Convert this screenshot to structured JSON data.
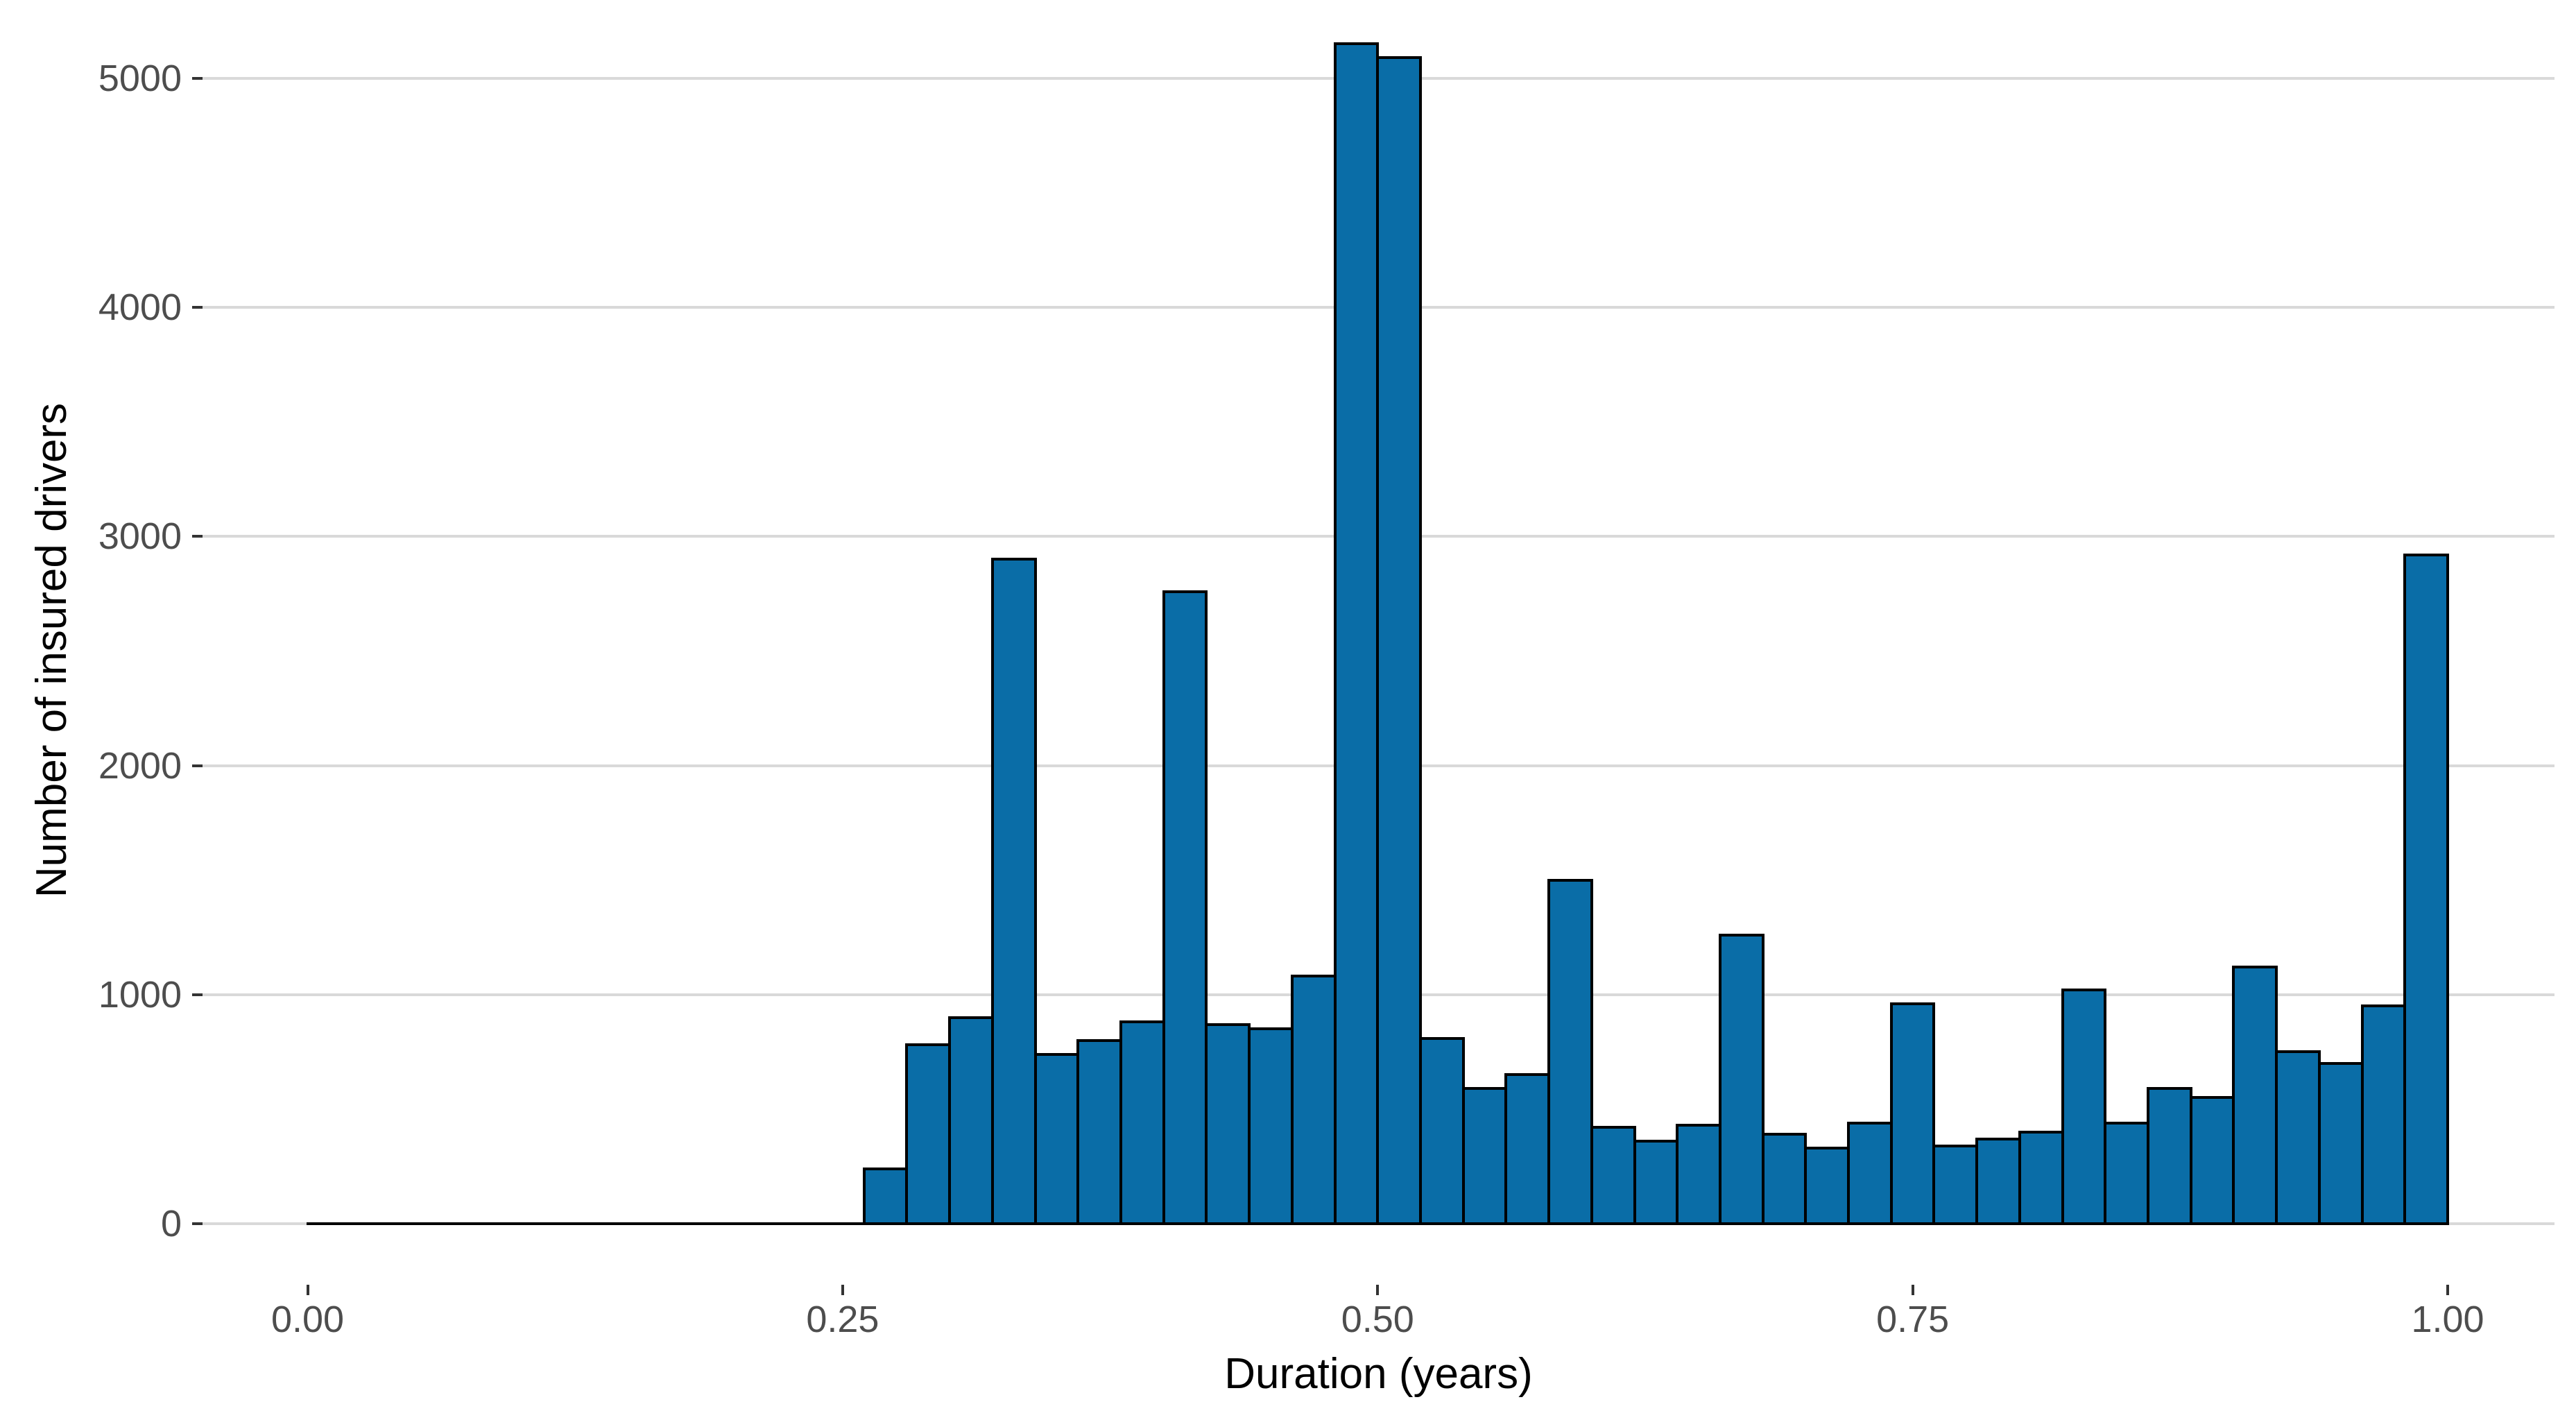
{
  "chart_data": {
    "type": "bar",
    "subtype": "histogram",
    "title": "",
    "xlabel": "Duration (years)",
    "ylabel": "Number of insured drivers",
    "legend": "none",
    "grid": "horizontal-major-only",
    "xlim": [
      -0.05,
      1.05
    ],
    "ylim": [
      0,
      5400
    ],
    "bin_start": 0.0,
    "bin_width": 0.02,
    "counts": [
      0,
      0,
      0,
      0,
      0,
      0,
      0,
      0,
      0,
      0,
      0,
      0,
      0,
      240,
      780,
      900,
      2900,
      740,
      800,
      880,
      2760,
      870,
      850,
      1080,
      5150,
      5090,
      810,
      590,
      650,
      1500,
      420,
      360,
      430,
      1260,
      390,
      330,
      440,
      960,
      340,
      370,
      400,
      1020,
      440,
      590,
      550,
      1120,
      750,
      700,
      950,
      2920
    ],
    "x_ticks": [
      {
        "value": 0.0,
        "label": "0.00"
      },
      {
        "value": 0.25,
        "label": "0.25"
      },
      {
        "value": 0.5,
        "label": "0.50"
      },
      {
        "value": 0.75,
        "label": "0.75"
      },
      {
        "value": 1.0,
        "label": "1.00"
      }
    ],
    "y_ticks": [
      {
        "value": 0,
        "label": "0"
      },
      {
        "value": 1000,
        "label": "1000"
      },
      {
        "value": 2000,
        "label": "2000"
      },
      {
        "value": 3000,
        "label": "3000"
      },
      {
        "value": 4000,
        "label": "4000"
      },
      {
        "value": 5000,
        "label": "5000"
      }
    ],
    "colors": {
      "bar_fill": "#0a6da7",
      "bar_stroke": "#000000",
      "gridline": "#d9d9d9",
      "tick_mark": "#333333",
      "tick_label": "#4d4d4d",
      "axis_title": "#000000",
      "background": "#ffffff"
    }
  }
}
